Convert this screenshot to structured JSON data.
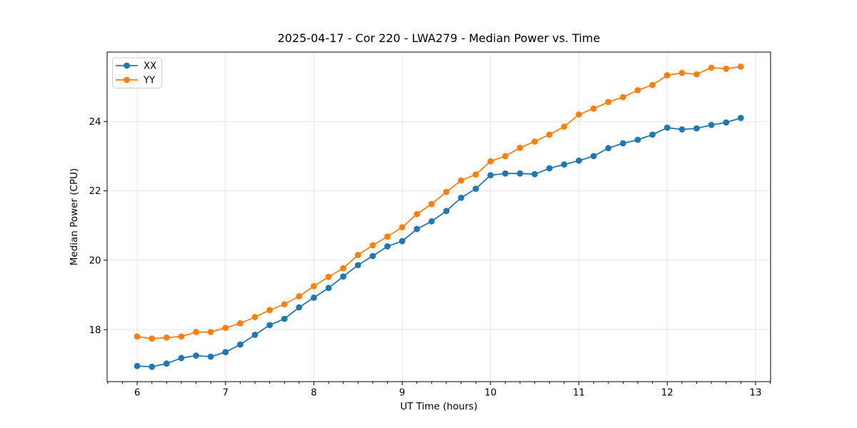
{
  "figure": {
    "title": "2025-04-17 - Cor 220 - LWA279 - Median Power vs. Time"
  },
  "chart_data": {
    "type": "line",
    "title": "2025-04-17 - Cor 220 - LWA279 - Median Power vs. Time",
    "xlabel": "UT Time (hours)",
    "ylabel": "Median Power (CPU)",
    "xlim": [
      5.66,
      13.17
    ],
    "ylim": [
      16.5,
      26.0
    ],
    "xticks": [
      6,
      7,
      8,
      9,
      10,
      11,
      12,
      13
    ],
    "yticks": [
      18,
      20,
      22,
      24
    ],
    "x_minor_step": 0.1666667,
    "grid": true,
    "legend_position": "upper left",
    "x": [
      6.0,
      6.167,
      6.333,
      6.5,
      6.667,
      6.833,
      7.0,
      7.167,
      7.333,
      7.5,
      7.667,
      7.833,
      8.0,
      8.167,
      8.333,
      8.5,
      8.667,
      8.833,
      9.0,
      9.167,
      9.333,
      9.5,
      9.667,
      9.833,
      10.0,
      10.167,
      10.333,
      10.5,
      10.667,
      10.833,
      11.0,
      11.167,
      11.333,
      11.5,
      11.667,
      11.833,
      12.0,
      12.167,
      12.333,
      12.5,
      12.667,
      12.833
    ],
    "series": [
      {
        "name": "XX",
        "color": "#1f77b4",
        "values": [
          16.95,
          16.93,
          17.02,
          17.18,
          17.25,
          17.22,
          17.35,
          17.57,
          17.85,
          18.13,
          18.31,
          18.64,
          18.92,
          19.2,
          19.53,
          19.86,
          20.12,
          20.4,
          20.55,
          20.9,
          21.12,
          21.42,
          21.8,
          22.06,
          22.45,
          22.5,
          22.5,
          22.48,
          22.65,
          22.76,
          22.87,
          23.0,
          23.23,
          23.37,
          23.47,
          23.62,
          23.82,
          23.77,
          23.8,
          23.9,
          23.97,
          24.1
        ]
      },
      {
        "name": "YY",
        "color": "#ff7f0e",
        "values": [
          17.8,
          17.74,
          17.77,
          17.8,
          17.93,
          17.93,
          18.05,
          18.18,
          18.36,
          18.56,
          18.73,
          18.96,
          19.25,
          19.52,
          19.77,
          20.15,
          20.43,
          20.68,
          20.95,
          21.33,
          21.62,
          21.97,
          22.3,
          22.47,
          22.85,
          23.0,
          23.24,
          23.42,
          23.62,
          23.85,
          24.2,
          24.37,
          24.56,
          24.7,
          24.9,
          25.05,
          25.33,
          25.4,
          25.36,
          25.55,
          25.52,
          25.58
        ]
      }
    ]
  }
}
